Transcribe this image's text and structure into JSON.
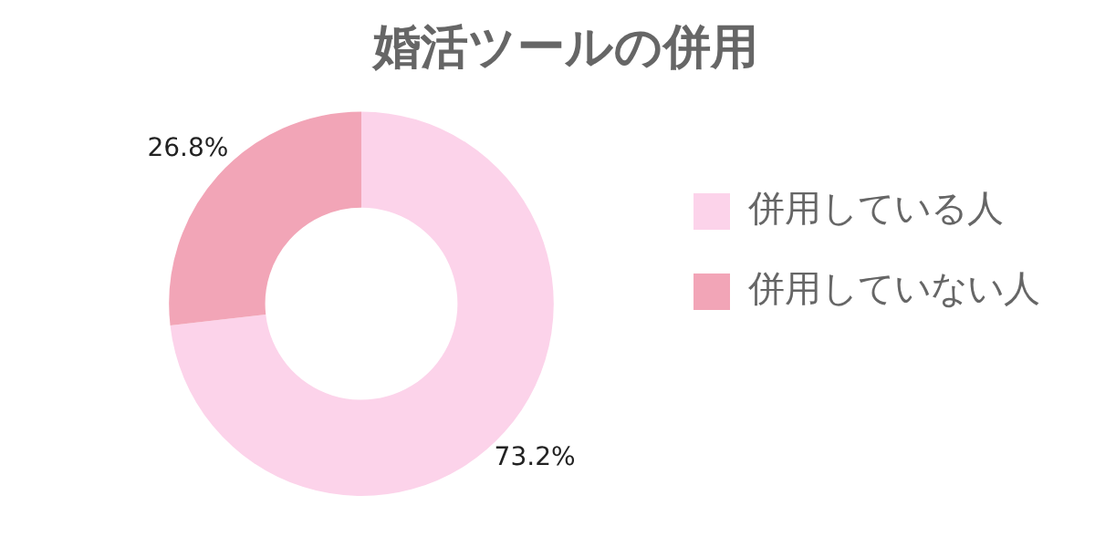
{
  "chart_data": {
    "type": "donut",
    "title": "婚活ツールの併用",
    "categories": [
      "併用している人",
      "併用していない人"
    ],
    "values": [
      73.2,
      26.8
    ],
    "colors": [
      "#fcd3ea",
      "#f2a5b7"
    ],
    "value_labels": [
      "73.2%",
      "26.8%"
    ],
    "legend": "right"
  }
}
